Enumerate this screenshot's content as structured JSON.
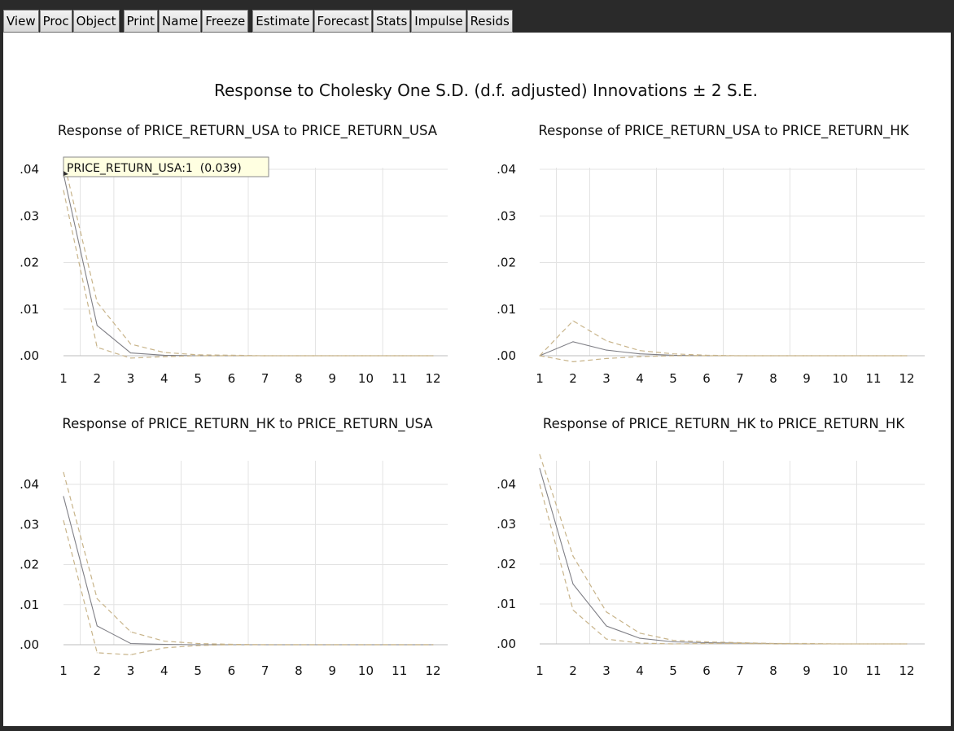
{
  "toolbar": {
    "groups": [
      [
        "View",
        "Proc",
        "Object"
      ],
      [
        "Print",
        "Name",
        "Freeze"
      ],
      [
        "Estimate",
        "Forecast",
        "Stats",
        "Impulse",
        "Resids"
      ]
    ]
  },
  "chart_title": "Response to Cholesky One S.D. (d.f. adjusted) Innovations ± 2 S.E.",
  "colors": {
    "response_line": "#7f7f86",
    "band_line": "#c8b48a",
    "gridline": "#e3e3e3",
    "axis": "#333333",
    "tooltip_bg": "#ffffe1"
  },
  "tooltip": {
    "text": "PRICE_RETURN_USA:1  (0.039)",
    "panel": 0
  },
  "chart_data": [
    {
      "type": "line",
      "title": "Response of PRICE_RETURN_USA to PRICE_RETURN_USA",
      "x": [
        1,
        2,
        3,
        4,
        5,
        6,
        7,
        8,
        9,
        10,
        11,
        12
      ],
      "xlim": [
        1,
        12
      ],
      "ylim": [
        -0.002,
        0.043
      ],
      "yticks": [
        0.0,
        0.01,
        0.02,
        0.03,
        0.04
      ],
      "ytick_labels": [
        ".00",
        ".01",
        ".02",
        ".03",
        ".04"
      ],
      "grid": true,
      "series": [
        {
          "role": "response",
          "values": [
            0.039,
            0.0065,
            0.0006,
            0.0001,
            0.0,
            0.0,
            0.0,
            0.0,
            0.0,
            0.0,
            0.0,
            0.0
          ]
        },
        {
          "role": "upper",
          "values": [
            0.042,
            0.0115,
            0.0025,
            0.0007,
            0.0002,
            0.0001,
            0.0,
            0.0,
            0.0,
            0.0,
            0.0,
            0.0
          ]
        },
        {
          "role": "lower",
          "values": [
            0.0355,
            0.0018,
            -0.0005,
            -0.0002,
            0.0,
            0.0,
            0.0,
            0.0,
            0.0,
            0.0,
            0.0,
            0.0
          ]
        }
      ]
    },
    {
      "type": "line",
      "title": "Response of PRICE_RETURN_USA to PRICE_RETURN_HK",
      "x": [
        1,
        2,
        3,
        4,
        5,
        6,
        7,
        8,
        9,
        10,
        11,
        12
      ],
      "xlim": [
        1,
        12
      ],
      "ylim": [
        -0.002,
        0.043
      ],
      "yticks": [
        0.0,
        0.01,
        0.02,
        0.03,
        0.04
      ],
      "ytick_labels": [
        ".00",
        ".01",
        ".02",
        ".03",
        ".04"
      ],
      "grid": true,
      "series": [
        {
          "role": "response",
          "values": [
            0.0,
            0.003,
            0.0012,
            0.0004,
            0.0001,
            0.0,
            0.0,
            0.0,
            0.0,
            0.0,
            0.0,
            0.0
          ]
        },
        {
          "role": "upper",
          "values": [
            0.0,
            0.0075,
            0.0032,
            0.0011,
            0.0004,
            0.0001,
            0.0,
            0.0,
            0.0,
            0.0,
            0.0,
            0.0
          ]
        },
        {
          "role": "lower",
          "values": [
            0.0,
            -0.0013,
            -0.0006,
            -0.0002,
            0.0,
            0.0,
            0.0,
            0.0,
            0.0,
            0.0,
            0.0,
            0.0
          ]
        }
      ]
    },
    {
      "type": "line",
      "title": "Response of PRICE_RETURN_HK to PRICE_RETURN_USA",
      "x": [
        1,
        2,
        3,
        4,
        5,
        6,
        7,
        8,
        9,
        10,
        11,
        12
      ],
      "xlim": [
        1,
        12
      ],
      "ylim": [
        -0.004,
        0.049
      ],
      "yticks": [
        0.0,
        0.01,
        0.02,
        0.03,
        0.04
      ],
      "ytick_labels": [
        ".00",
        ".01",
        ".02",
        ".03",
        ".04"
      ],
      "grid": true,
      "series": [
        {
          "role": "response",
          "values": [
            0.037,
            0.0047,
            0.0003,
            0.0001,
            0.0,
            0.0,
            0.0,
            0.0,
            0.0,
            0.0,
            0.0,
            0.0
          ]
        },
        {
          "role": "upper",
          "values": [
            0.043,
            0.0115,
            0.0032,
            0.0009,
            0.0003,
            0.0001,
            0.0,
            0.0,
            0.0,
            0.0,
            0.0,
            0.0
          ]
        },
        {
          "role": "lower",
          "values": [
            0.031,
            -0.002,
            -0.0025,
            -0.0008,
            -0.0002,
            0.0,
            0.0,
            0.0,
            0.0,
            0.0,
            0.0,
            0.0
          ]
        }
      ]
    },
    {
      "type": "line",
      "title": "Response of PRICE_RETURN_HK to PRICE_RETURN_HK",
      "x": [
        1,
        2,
        3,
        4,
        5,
        6,
        7,
        8,
        9,
        10,
        11,
        12
      ],
      "xlim": [
        1,
        12
      ],
      "ylim": [
        -0.002,
        0.048
      ],
      "yticks": [
        0.0,
        0.01,
        0.02,
        0.03,
        0.04
      ],
      "ytick_labels": [
        ".00",
        ".01",
        ".02",
        ".03",
        ".04"
      ],
      "grid": true,
      "series": [
        {
          "role": "response",
          "values": [
            0.044,
            0.015,
            0.0045,
            0.0014,
            0.0005,
            0.0003,
            0.0002,
            0.0001,
            0.0,
            0.0,
            0.0,
            0.0
          ]
        },
        {
          "role": "upper",
          "values": [
            0.0475,
            0.022,
            0.008,
            0.0027,
            0.0009,
            0.0005,
            0.0003,
            0.0001,
            0.0001,
            0.0,
            0.0,
            0.0
          ]
        },
        {
          "role": "lower",
          "values": [
            0.04,
            0.0085,
            0.0012,
            0.0002,
            0.0,
            0.0001,
            0.0001,
            0.0,
            0.0,
            0.0,
            0.0,
            0.0
          ]
        }
      ]
    }
  ]
}
